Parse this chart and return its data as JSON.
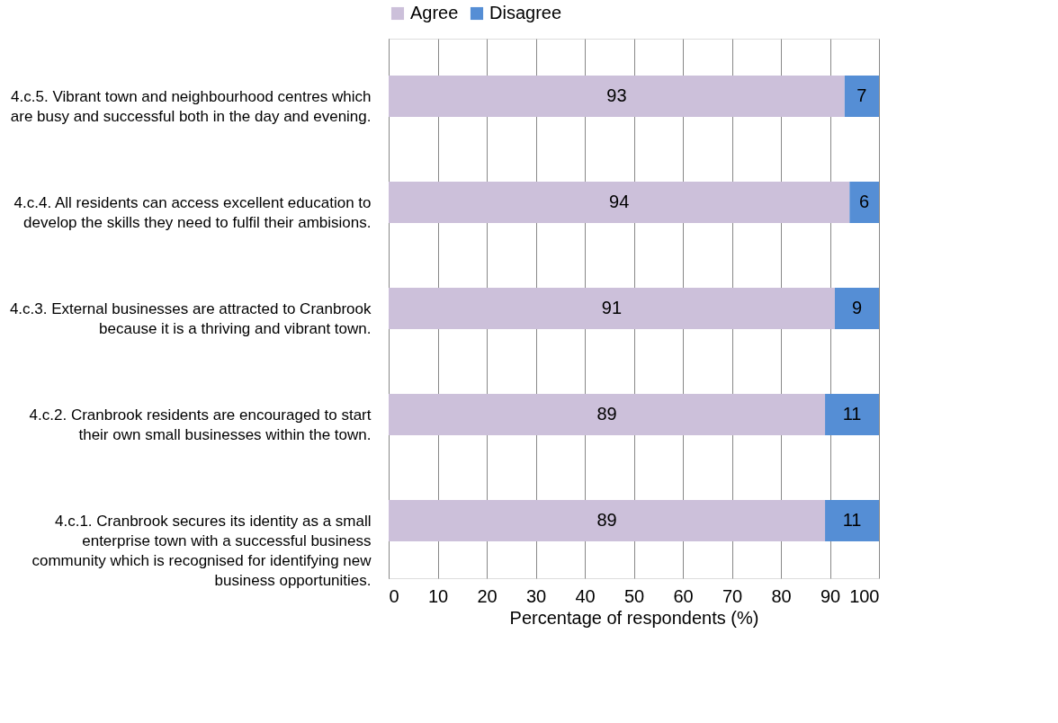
{
  "chart_data": {
    "type": "bar",
    "orientation": "horizontal",
    "stacked": true,
    "categories": [
      "4.c.5. Vibrant town and neighbourhood  centres which\nare busy and successful both in the day and evening.",
      "4.c.4. All residents  can access excellent education to\ndevelop the skills they need to fulfil their ambisions.",
      "4.c.3. External businesses  are attracted to Cranbrook\nbecause it is a thriving and vibrant town.",
      "4.c.2. Cranbrook residents are encouraged to start\ntheir own small businesses  within the town.",
      "4.c.1. Cranbrook secures its identity as a small\nenterprise town with a successful business\ncommunity which is recognised for identifying new\nbusiness opportunities."
    ],
    "series": [
      {
        "name": "Agree",
        "color": "#ccc0da",
        "values": [
          93,
          94,
          91,
          89,
          89
        ]
      },
      {
        "name": "Disagree",
        "color": "#558ed5",
        "values": [
          7,
          6,
          9,
          11,
          11
        ]
      }
    ],
    "xlim": [
      0,
      100
    ],
    "xticks": [
      0,
      10,
      20,
      30,
      40,
      50,
      60,
      70,
      80,
      90,
      100
    ],
    "xlabel": "Percentage of respondents (%)",
    "data_labels": true,
    "grid": "x",
    "legend": "top"
  }
}
